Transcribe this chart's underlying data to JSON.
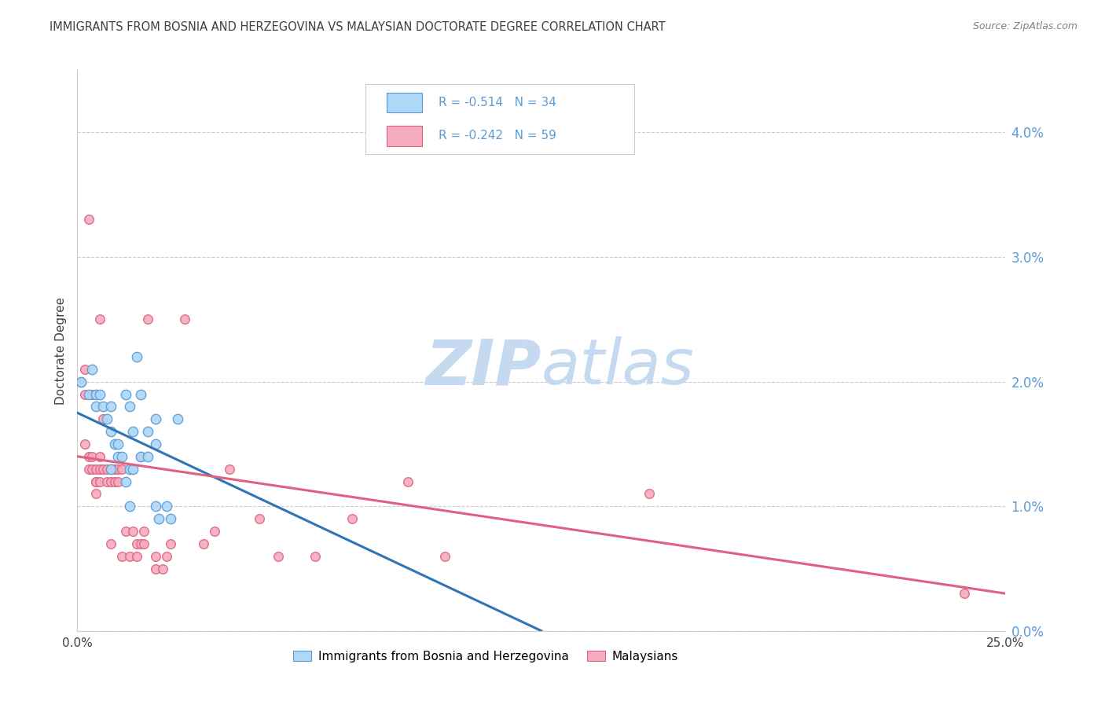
{
  "title": "IMMIGRANTS FROM BOSNIA AND HERZEGOVINA VS MALAYSIAN DOCTORATE DEGREE CORRELATION CHART",
  "source": "Source: ZipAtlas.com",
  "ylabel": "Doctorate Degree",
  "right_yticks": [
    "0.0%",
    "1.0%",
    "2.0%",
    "3.0%",
    "4.0%"
  ],
  "right_ytick_vals": [
    0.0,
    0.01,
    0.02,
    0.03,
    0.04
  ],
  "xlim": [
    0.0,
    0.25
  ],
  "ylim": [
    0.0,
    0.045
  ],
  "blue_R": "-0.514",
  "blue_N": "34",
  "pink_R": "-0.242",
  "pink_N": "59",
  "legend_label_blue": "Immigrants from Bosnia and Herzegovina",
  "legend_label_pink": "Malaysians",
  "blue_color": "#ADD8F7",
  "pink_color": "#F4ACBE",
  "blue_edge_color": "#5B9BD5",
  "pink_edge_color": "#E06080",
  "blue_line_color": "#2E75B6",
  "pink_line_color": "#E06080",
  "title_color": "#404040",
  "source_color": "#808080",
  "right_axis_color": "#5B9BD5",
  "grid_color": "#CCCCCC",
  "watermark_zip_color": "#C5D9F0",
  "watermark_atlas_color": "#C5D9F0",
  "blue_points": [
    [
      0.001,
      0.02
    ],
    [
      0.003,
      0.019
    ],
    [
      0.004,
      0.021
    ],
    [
      0.005,
      0.019
    ],
    [
      0.005,
      0.018
    ],
    [
      0.006,
      0.019
    ],
    [
      0.007,
      0.018
    ],
    [
      0.008,
      0.017
    ],
    [
      0.009,
      0.016
    ],
    [
      0.009,
      0.018
    ],
    [
      0.009,
      0.013
    ],
    [
      0.01,
      0.015
    ],
    [
      0.011,
      0.015
    ],
    [
      0.011,
      0.014
    ],
    [
      0.012,
      0.014
    ],
    [
      0.013,
      0.019
    ],
    [
      0.013,
      0.012
    ],
    [
      0.014,
      0.018
    ],
    [
      0.014,
      0.013
    ],
    [
      0.014,
      0.01
    ],
    [
      0.015,
      0.016
    ],
    [
      0.015,
      0.013
    ],
    [
      0.016,
      0.022
    ],
    [
      0.017,
      0.019
    ],
    [
      0.017,
      0.014
    ],
    [
      0.019,
      0.016
    ],
    [
      0.019,
      0.014
    ],
    [
      0.021,
      0.017
    ],
    [
      0.021,
      0.015
    ],
    [
      0.021,
      0.01
    ],
    [
      0.022,
      0.009
    ],
    [
      0.024,
      0.01
    ],
    [
      0.025,
      0.009
    ],
    [
      0.027,
      0.017
    ]
  ],
  "pink_points": [
    [
      0.001,
      0.02
    ],
    [
      0.002,
      0.019
    ],
    [
      0.002,
      0.021
    ],
    [
      0.002,
      0.015
    ],
    [
      0.003,
      0.014
    ],
    [
      0.003,
      0.013
    ],
    [
      0.003,
      0.033
    ],
    [
      0.004,
      0.019
    ],
    [
      0.004,
      0.014
    ],
    [
      0.004,
      0.013
    ],
    [
      0.005,
      0.013
    ],
    [
      0.005,
      0.012
    ],
    [
      0.005,
      0.012
    ],
    [
      0.005,
      0.011
    ],
    [
      0.006,
      0.014
    ],
    [
      0.006,
      0.013
    ],
    [
      0.006,
      0.012
    ],
    [
      0.006,
      0.025
    ],
    [
      0.007,
      0.017
    ],
    [
      0.007,
      0.013
    ],
    [
      0.008,
      0.012
    ],
    [
      0.008,
      0.013
    ],
    [
      0.009,
      0.013
    ],
    [
      0.009,
      0.013
    ],
    [
      0.009,
      0.012
    ],
    [
      0.009,
      0.007
    ],
    [
      0.01,
      0.013
    ],
    [
      0.01,
      0.012
    ],
    [
      0.011,
      0.013
    ],
    [
      0.011,
      0.012
    ],
    [
      0.012,
      0.013
    ],
    [
      0.012,
      0.006
    ],
    [
      0.013,
      0.008
    ],
    [
      0.014,
      0.006
    ],
    [
      0.015,
      0.008
    ],
    [
      0.016,
      0.007
    ],
    [
      0.016,
      0.006
    ],
    [
      0.017,
      0.014
    ],
    [
      0.017,
      0.007
    ],
    [
      0.018,
      0.008
    ],
    [
      0.018,
      0.007
    ],
    [
      0.019,
      0.025
    ],
    [
      0.021,
      0.006
    ],
    [
      0.021,
      0.005
    ],
    [
      0.023,
      0.005
    ],
    [
      0.024,
      0.006
    ],
    [
      0.025,
      0.007
    ],
    [
      0.029,
      0.025
    ],
    [
      0.034,
      0.007
    ],
    [
      0.037,
      0.008
    ],
    [
      0.041,
      0.013
    ],
    [
      0.049,
      0.009
    ],
    [
      0.054,
      0.006
    ],
    [
      0.064,
      0.006
    ],
    [
      0.074,
      0.009
    ],
    [
      0.089,
      0.012
    ],
    [
      0.099,
      0.006
    ],
    [
      0.154,
      0.011
    ],
    [
      0.239,
      0.003
    ]
  ],
  "blue_scatter_size": 80,
  "pink_scatter_size": 70,
  "blue_trendline": [
    [
      0.0,
      0.0175
    ],
    [
      0.125,
      0.0
    ]
  ],
  "pink_trendline": [
    [
      0.0,
      0.014
    ],
    [
      0.25,
      0.003
    ]
  ]
}
